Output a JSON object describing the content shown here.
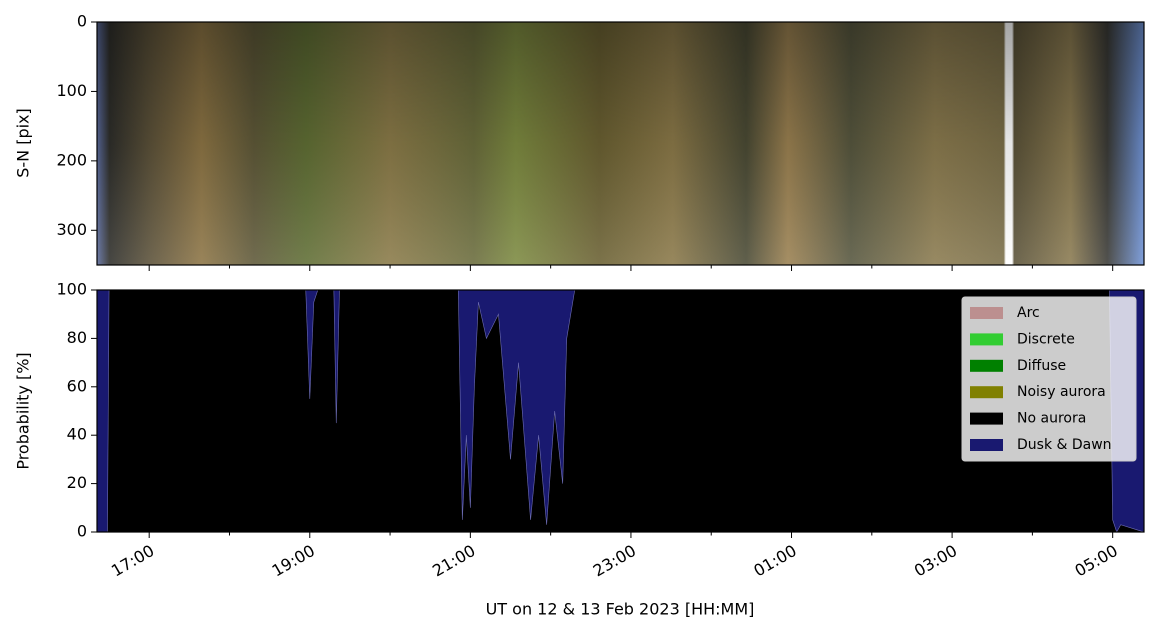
{
  "chart_data": [
    {
      "type": "image",
      "ylabel": "S-N [pix]",
      "ylim": [
        350,
        0
      ],
      "yticks": [
        0,
        100,
        200,
        300
      ]
    },
    {
      "type": "area",
      "stacked": true,
      "xlabel": "UT on 12 & 13 Feb 2023 [HH:MM]",
      "ylabel": "Probability [%]",
      "xlim": [
        16.35,
        29.39
      ],
      "xticks": [
        {
          "value": 17,
          "label": "17:00"
        },
        {
          "value": 19,
          "label": "19:00"
        },
        {
          "value": 21,
          "label": "21:00"
        },
        {
          "value": 23,
          "label": "23:00"
        },
        {
          "value": 25,
          "label": "01:00"
        },
        {
          "value": 27,
          "label": "03:00"
        },
        {
          "value": 29,
          "label": "05:00"
        }
      ],
      "ylim": [
        0,
        100
      ],
      "yticks": [
        0,
        20,
        40,
        60,
        80,
        100
      ],
      "legend": "upper right",
      "x": [
        16.35,
        16.48,
        16.5,
        18.95,
        19.0,
        19.05,
        19.1,
        19.3,
        19.33,
        19.37,
        20.85,
        20.9,
        20.95,
        21.0,
        21.05,
        21.1,
        21.2,
        21.35,
        21.5,
        21.6,
        21.75,
        21.85,
        21.95,
        22.05,
        22.15,
        22.2,
        22.3,
        28.96,
        29.0,
        29.05,
        29.1,
        29.39
      ],
      "series": [
        {
          "name": "Arc",
          "color": "#bc8f8f",
          "values": [
            0,
            0,
            0,
            0,
            0,
            0,
            0,
            0,
            0,
            0,
            0,
            0,
            0,
            0,
            0,
            0,
            0,
            0,
            0,
            0,
            0,
            0,
            0,
            0,
            0,
            0,
            0,
            0,
            0,
            0,
            0,
            0
          ]
        },
        {
          "name": "Discrete",
          "color": "#32cd32",
          "values": [
            0,
            0,
            0,
            0,
            0,
            0,
            0,
            0,
            0,
            0,
            0,
            0,
            0,
            0,
            0,
            0,
            0,
            0,
            0,
            0,
            0,
            0,
            0,
            0,
            0,
            0,
            0,
            0,
            0,
            0,
            0,
            0
          ]
        },
        {
          "name": "Diffuse",
          "color": "#008000",
          "values": [
            0,
            0,
            0,
            0,
            0,
            0,
            0,
            0,
            0,
            0,
            0,
            0,
            0,
            0,
            0,
            0,
            0,
            0,
            0,
            0,
            0,
            0,
            0,
            0,
            0,
            0,
            0,
            0,
            0,
            0,
            0,
            0
          ]
        },
        {
          "name": "Noisy aurora",
          "color": "#808000",
          "values": [
            0,
            0,
            0,
            0,
            0,
            0,
            0,
            0,
            0,
            0,
            0,
            0,
            0,
            0,
            0,
            0,
            0,
            0,
            0,
            0,
            0,
            0,
            0,
            0,
            0,
            0,
            0,
            0,
            0,
            0,
            0,
            0
          ]
        },
        {
          "name": "No aurora",
          "color": "#000000",
          "values": [
            0,
            0,
            100,
            100,
            55,
            95,
            100,
            100,
            45,
            100,
            100,
            5,
            40,
            10,
            60,
            95,
            80,
            90,
            30,
            70,
            5,
            40,
            3,
            50,
            20,
            80,
            100,
            100,
            5,
            0,
            3,
            0
          ]
        },
        {
          "name": "Dusk & Dawn",
          "color": "#191970",
          "values": [
            100,
            100,
            0,
            0,
            45,
            5,
            0,
            0,
            55,
            0,
            0,
            95,
            60,
            90,
            40,
            5,
            20,
            10,
            70,
            30,
            95,
            60,
            97,
            50,
            80,
            20,
            0,
            0,
            95,
            100,
            97,
            100
          ]
        }
      ]
    }
  ]
}
